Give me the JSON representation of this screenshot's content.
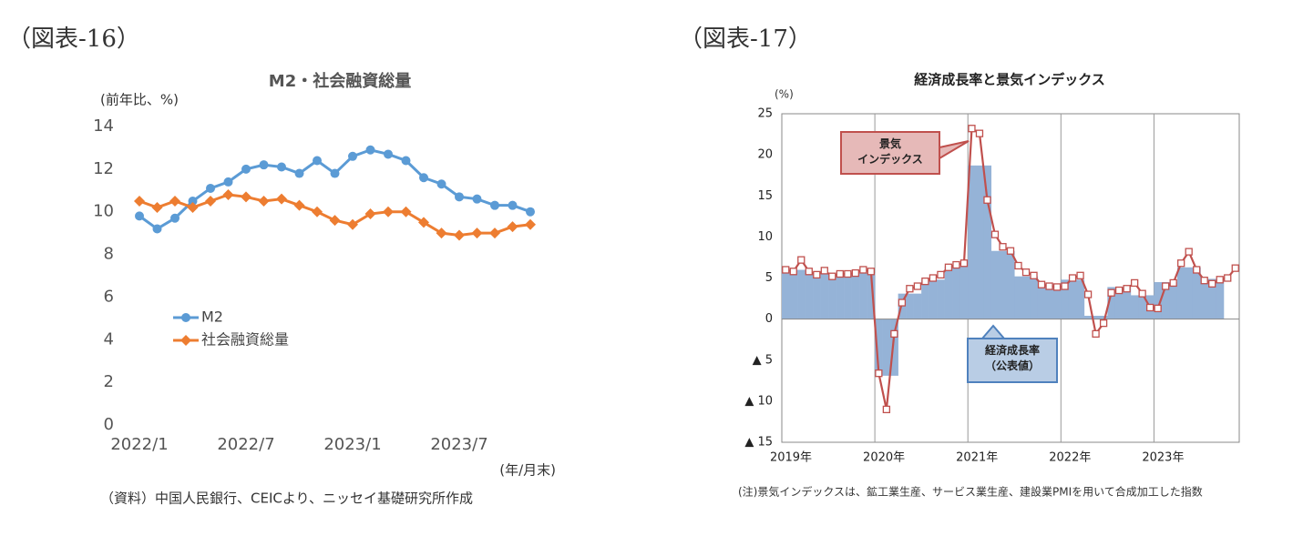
{
  "figure_labels": [
    "（図表-16）",
    "（図表-17）"
  ],
  "notes": [
    "（資料）中国人民銀行、CEICより、ニッセイ基礎研究所作成",
    "(注)景気インデックスは、鉱工業生産、サービス業生産、建設業PMIを用いて合成加工した指数"
  ],
  "chart_data": [
    {
      "type": "line",
      "title": "M2・社会融資総量",
      "y_label": "(前年比、%)",
      "x_label": "(年/月末)",
      "categories": [
        "2022/1",
        null,
        null,
        null,
        null,
        null,
        "2022/7",
        null,
        null,
        null,
        null,
        null,
        "2023/1",
        null,
        null,
        null,
        null,
        null,
        "2023/7",
        null,
        null,
        null,
        null
      ],
      "series": [
        {
          "name": "M2",
          "color": "#5b9bd5",
          "marker": "circle",
          "values": [
            9.8,
            9.2,
            9.7,
            10.5,
            11.1,
            11.4,
            12.0,
            12.2,
            12.1,
            11.8,
            12.4,
            11.8,
            12.6,
            12.9,
            12.7,
            12.4,
            11.6,
            11.3,
            10.7,
            10.6,
            10.3,
            10.3,
            10.0
          ]
        },
        {
          "name": "社会融資総量",
          "color": "#ed7d31",
          "marker": "diamond",
          "values": [
            10.5,
            10.2,
            10.5,
            10.2,
            10.5,
            10.8,
            10.7,
            10.5,
            10.6,
            10.3,
            10.0,
            9.6,
            9.4,
            9.9,
            10.0,
            10.0,
            9.5,
            9.0,
            8.9,
            9.0,
            9.0,
            9.3,
            9.4
          ]
        }
      ],
      "ylim": [
        0,
        14
      ],
      "yticks": [
        0,
        2,
        4,
        6,
        8,
        10,
        12,
        14
      ],
      "legend": "left",
      "grid": false
    },
    {
      "type": "combo",
      "title": "経済成長率と景気インデックス",
      "y_label": "(%)",
      "categories": [
        "2019年",
        null,
        null,
        null,
        null,
        null,
        null,
        null,
        null,
        null,
        null,
        null,
        "2020年",
        null,
        null,
        null,
        null,
        null,
        null,
        null,
        null,
        null,
        null,
        null,
        "2021年",
        null,
        null,
        null,
        null,
        null,
        null,
        null,
        null,
        null,
        null,
        null,
        "2022年",
        null,
        null,
        null,
        null,
        null,
        null,
        null,
        null,
        null,
        null,
        null,
        "2023年",
        null,
        null,
        null,
        null,
        null,
        null,
        null,
        null,
        null,
        null
      ],
      "series": [
        {
          "name": "経済成長率\n（公表値）",
          "kind": "bar",
          "color": "#95b3d7",
          "values": [
            6.0,
            6.0,
            6.0,
            5.6,
            5.6,
            5.6,
            5.5,
            5.5,
            5.5,
            5.6,
            5.6,
            5.6,
            -6.9,
            -6.9,
            -6.9,
            3.1,
            3.1,
            3.1,
            4.8,
            4.8,
            4.8,
            6.4,
            6.4,
            6.4,
            18.7,
            18.7,
            18.7,
            8.3,
            8.3,
            8.3,
            5.2,
            5.2,
            5.2,
            4.3,
            4.3,
            4.3,
            4.8,
            4.8,
            4.8,
            0.4,
            0.4,
            0.4,
            3.9,
            3.9,
            3.9,
            2.9,
            2.9,
            2.9,
            4.5,
            4.5,
            4.5,
            6.3,
            6.3,
            6.3,
            4.9,
            4.9,
            4.9,
            null,
            null
          ]
        },
        {
          "name": "景気\nインデックス",
          "kind": "line",
          "color": "#c0504d",
          "values": [
            6.0,
            5.8,
            7.2,
            5.8,
            5.4,
            5.9,
            5.2,
            5.5,
            5.5,
            5.6,
            6.0,
            5.8,
            -6.6,
            -11.0,
            -1.8,
            2.0,
            3.7,
            4.0,
            4.6,
            5.0,
            5.4,
            6.3,
            6.6,
            6.8,
            23.2,
            22.6,
            14.5,
            10.3,
            8.8,
            8.3,
            6.5,
            5.7,
            5.3,
            4.2,
            4.0,
            3.9,
            4.0,
            5.0,
            5.3,
            3.0,
            -1.8,
            -0.5,
            3.2,
            3.5,
            3.7,
            4.4,
            3.1,
            1.4,
            1.3,
            4.0,
            4.4,
            6.8,
            8.2,
            6.0,
            4.7,
            4.3,
            4.8,
            5.0,
            6.2
          ]
        }
      ],
      "ylim": [
        -15,
        25
      ],
      "yticks": [
        {
          "value": -15,
          "label": "▲ 15"
        },
        {
          "value": -10,
          "label": "▲ 10"
        },
        {
          "value": -5,
          "label": "▲ 5"
        },
        0,
        5,
        10,
        15,
        20,
        25
      ],
      "xgrid": true
    }
  ]
}
